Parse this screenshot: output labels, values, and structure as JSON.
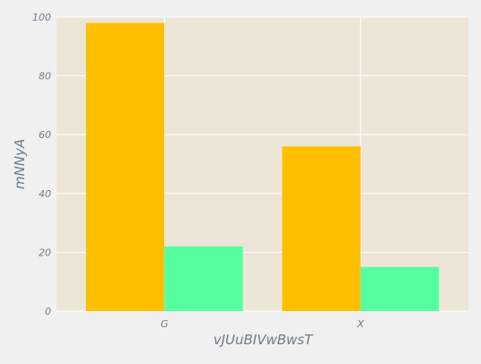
{
  "chart_data": {
    "type": "bar",
    "categories": [
      "G",
      "X"
    ],
    "series": [
      {
        "values": [
          98,
          56
        ],
        "color": "#ffbf00"
      },
      {
        "values": [
          22,
          15
        ],
        "color": "#55ff9f"
      }
    ],
    "title": "",
    "xlabel": "vJUuBIVwBwsT",
    "ylabel": "mNNyA",
    "ylim": [
      0,
      100
    ],
    "yticks": [
      0,
      20,
      40,
      60,
      80,
      100
    ],
    "grid": true,
    "legend": "none",
    "plot_background": "#ede6d6",
    "grid_color": "#ffffff",
    "tick_color": "#6f7c86"
  }
}
